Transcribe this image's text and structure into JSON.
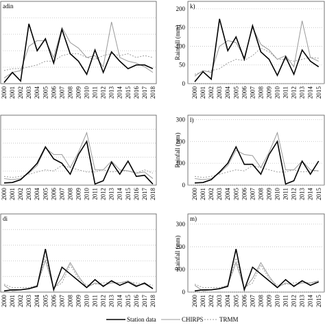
{
  "chart_data": [
    {
      "type": "line",
      "title": "adin",
      "categories": [
        "2000",
        "2001",
        "2002",
        "2003",
        "2004",
        "2005",
        "2006",
        "2007",
        "2008",
        "2009",
        "2010",
        "2011",
        "2012",
        "2013",
        "2014",
        "2015",
        "2016",
        "2017",
        "2018"
      ],
      "series": [
        {
          "name": "Station data",
          "color": "#000000",
          "values": [
            3,
            30,
            7,
            160,
            88,
            120,
            55,
            145,
            80,
            60,
            25,
            90,
            30,
            85,
            60,
            40,
            50,
            50,
            40
          ]
        },
        {
          "name": "CHIRPS",
          "color": "#999999",
          "values": [
            15,
            30,
            35,
            100,
            115,
            115,
            70,
            150,
            110,
            95,
            70,
            75,
            45,
            165,
            70,
            60,
            55,
            45,
            30
          ]
        },
        {
          "name": "TRMM",
          "color": "#999999",
          "dashed": true,
          "values": [
            35,
            40,
            40,
            45,
            50,
            60,
            60,
            75,
            80,
            80,
            70,
            65,
            75,
            80,
            75,
            80,
            70,
            75,
            70
          ]
        }
      ],
      "ylim": [
        0,
        220
      ],
      "grid": true
    },
    {
      "type": "line",
      "title": "k)",
      "ylabel": "Rainfall (mm)",
      "categories": [
        "2000",
        "2001",
        "2002",
        "2003",
        "2004",
        "2005",
        "2006",
        "2007",
        "2008",
        "2009",
        "2010",
        "2011",
        "2012",
        "2013",
        "2014",
        "2015"
      ],
      "series": [
        {
          "name": "Station data",
          "color": "#000000",
          "values": [
            5,
            32,
            12,
            173,
            88,
            125,
            65,
            155,
            85,
            65,
            22,
            72,
            25,
            90,
            60,
            45
          ]
        },
        {
          "name": "CHIRPS",
          "color": "#999999",
          "values": [
            20,
            35,
            30,
            100,
            115,
            110,
            70,
            150,
            105,
            90,
            65,
            75,
            45,
            168,
            70,
            60
          ]
        },
        {
          "name": "TRMM",
          "color": "#999999",
          "dashed": true,
          "values": [
            25,
            32,
            35,
            40,
            55,
            65,
            62,
            75,
            95,
            85,
            65,
            65,
            60,
            65,
            70,
            68
          ]
        }
      ],
      "ylim": [
        0,
        220
      ],
      "yticks": [
        0,
        50,
        100,
        150,
        200
      ],
      "grid": true
    },
    {
      "type": "line",
      "title": "",
      "categories": [
        "2000",
        "2001",
        "2002",
        "2003",
        "2004",
        "2005",
        "2006",
        "2007",
        "2008",
        "2009",
        "2010",
        "2011",
        "2012",
        "2013",
        "2014",
        "2015",
        "2016",
        "2017",
        "2018"
      ],
      "series": [
        {
          "name": "Station data",
          "color": "#000000",
          "values": [
            10,
            12,
            25,
            60,
            100,
            175,
            120,
            100,
            50,
            140,
            200,
            5,
            20,
            105,
            50,
            110,
            40,
            45,
            5
          ]
        },
        {
          "name": "CHIRPS",
          "color": "#999999",
          "values": [
            30,
            25,
            30,
            55,
            90,
            170,
            140,
            140,
            80,
            150,
            240,
            70,
            70,
            110,
            70,
            65,
            55,
            60,
            30
          ]
        },
        {
          "name": "TRMM",
          "color": "#999999",
          "dashed": true,
          "values": [
            40,
            35,
            40,
            50,
            60,
            70,
            65,
            90,
            80,
            70,
            60,
            60,
            70,
            60,
            65,
            65,
            55,
            70,
            55
          ]
        }
      ],
      "ylim": [
        0,
        320
      ],
      "grid": true
    },
    {
      "type": "line",
      "title": "l)",
      "ylabel": "Rainfall (mm)",
      "categories": [
        "2000",
        "2001",
        "2002",
        "2003",
        "2004",
        "2005",
        "2006",
        "2007",
        "2008",
        "2009",
        "2010",
        "2011",
        "2012",
        "2013",
        "2014",
        "2015"
      ],
      "series": [
        {
          "name": "Station data",
          "color": "#000000",
          "values": [
            10,
            12,
            25,
            60,
            100,
            175,
            95,
            95,
            50,
            140,
            200,
            5,
            20,
            110,
            50,
            110
          ]
        },
        {
          "name": "CHIRPS",
          "color": "#999999",
          "values": [
            30,
            25,
            30,
            55,
            90,
            160,
            140,
            135,
            80,
            150,
            240,
            70,
            70,
            110,
            70,
            65
          ]
        },
        {
          "name": "TRMM",
          "color": "#999999",
          "dashed": true,
          "values": [
            40,
            35,
            40,
            50,
            60,
            70,
            65,
            90,
            80,
            70,
            60,
            60,
            70,
            60,
            65,
            65
          ]
        }
      ],
      "ylim": [
        0,
        320
      ],
      "yticks": [
        0,
        100,
        200,
        300
      ],
      "grid": true
    },
    {
      "type": "line",
      "title": "di",
      "categories": [
        "2000",
        "2001",
        "2002",
        "2003",
        "2004",
        "2005",
        "2006",
        "2007",
        "2008",
        "2009",
        "2010",
        "2011",
        "2012",
        "2013",
        "2014",
        "2015",
        "2016",
        "2017",
        "2018"
      ],
      "series": [
        {
          "name": "Station data",
          "color": "#000000",
          "values": [
            5,
            10,
            10,
            15,
            25,
            190,
            10,
            110,
            80,
            50,
            20,
            55,
            25,
            50,
            30,
            45,
            25,
            40,
            15
          ]
        },
        {
          "name": "CHIRPS",
          "color": "#999999",
          "values": [
            30,
            5,
            10,
            15,
            30,
            140,
            15,
            60,
            130,
            70,
            20,
            40,
            30,
            40,
            40,
            50,
            30,
            35,
            15
          ]
        },
        {
          "name": "TRMM",
          "color": "#999999",
          "dashed": true,
          "values": [
            35,
            20,
            20,
            20,
            30,
            160,
            20,
            40,
            120,
            60,
            30,
            35,
            40,
            45,
            40,
            45,
            40,
            35,
            30
          ]
        }
      ],
      "ylim": [
        0,
        345
      ],
      "grid": true
    },
    {
      "type": "line",
      "title": "m)",
      "ylabel": "Rainfall (mm)",
      "categories": [
        "2000",
        "2001",
        "2002",
        "2003",
        "2004",
        "2005",
        "2006",
        "2007",
        "2008",
        "2009",
        "2010",
        "2011",
        "2012",
        "2013",
        "2014",
        "2015"
      ],
      "series": [
        {
          "name": "Station data",
          "color": "#000000",
          "values": [
            5,
            10,
            10,
            15,
            25,
            190,
            10,
            110,
            80,
            50,
            20,
            55,
            25,
            50,
            30,
            45
          ]
        },
        {
          "name": "CHIRPS",
          "color": "#999999",
          "values": [
            30,
            5,
            10,
            15,
            30,
            130,
            15,
            60,
            130,
            70,
            20,
            40,
            30,
            40,
            40,
            50
          ]
        },
        {
          "name": "TRMM",
          "color": "#999999",
          "dashed": true,
          "values": [
            35,
            20,
            20,
            20,
            30,
            150,
            20,
            40,
            120,
            60,
            30,
            35,
            40,
            45,
            40,
            45
          ]
        }
      ],
      "ylim": [
        0,
        345
      ],
      "yticks": [
        0,
        100,
        200,
        300
      ],
      "grid": true
    }
  ]
}
